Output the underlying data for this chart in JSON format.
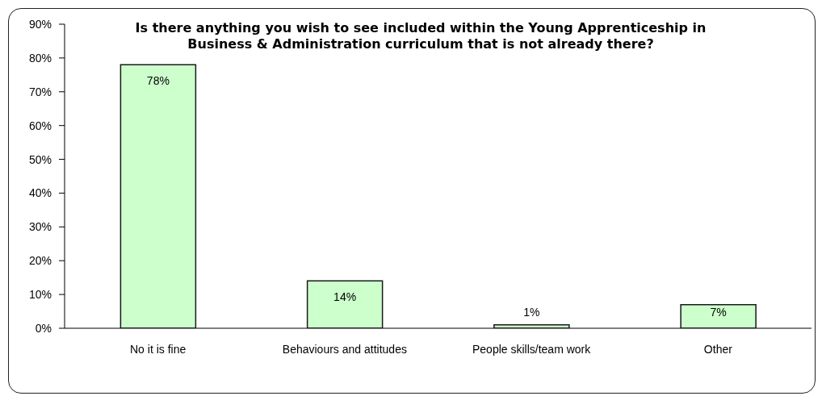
{
  "chart_data": {
    "type": "bar",
    "title": "Is there anything you wish to see included within the Young Apprenticeship in Business & Administration curriculum that is not already there?",
    "categories": [
      "No it is fine",
      "Behaviours and attitudes",
      "People skills/team work",
      "Other"
    ],
    "values": [
      78,
      14,
      1,
      7
    ],
    "color": "#ccffcc",
    "ylim": [
      0,
      90
    ],
    "yticks": [
      {
        "value": 0,
        "label": "0%"
      },
      {
        "value": 10,
        "label": "10%"
      },
      {
        "value": 20,
        "label": "20%"
      },
      {
        "value": 30,
        "label": "30%"
      },
      {
        "value": 40,
        "label": "40%"
      },
      {
        "value": 50,
        "label": "50%"
      },
      {
        "value": 60,
        "label": "60%"
      },
      {
        "value": 70,
        "label": "70%"
      },
      {
        "value": 80,
        "label": "80%"
      },
      {
        "value": 90,
        "label": "90%"
      }
    ],
    "value_labels": [
      "78%",
      "14%",
      "1%",
      "7%"
    ]
  }
}
